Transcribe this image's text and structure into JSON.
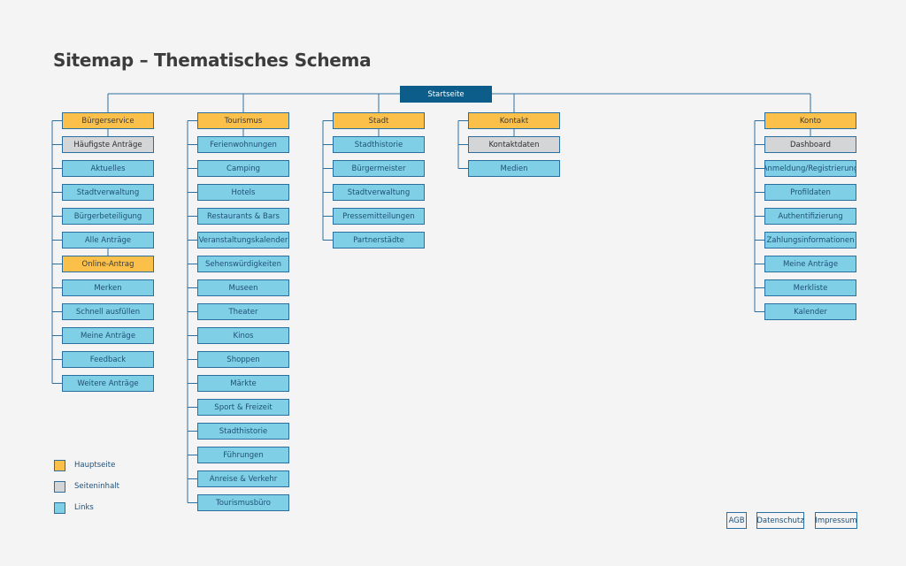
{
  "title": "Sitemap – Thematisches Schema",
  "colors": {
    "hauptseite": "#fbc04a",
    "seiteninhalt": "#d4d5d6",
    "links": "#7fd0e6",
    "startseite": "#0d5d8a",
    "line": "#2b6fa0"
  },
  "root": "Startseite",
  "columns": [
    {
      "title": "Bürgerservice",
      "items": [
        {
          "label": "Häufigste Anträge",
          "type": "content"
        },
        {
          "label": "Aktuelles",
          "type": "link"
        },
        {
          "label": "Stadtverwaltung",
          "type": "link"
        },
        {
          "label": "Bürgerbeteiligung",
          "type": "link"
        },
        {
          "label": "Alle Anträge",
          "type": "link"
        }
      ]
    },
    {
      "title": "Tourismus",
      "items": [
        {
          "label": "Ferienwohnungen",
          "type": "link"
        },
        {
          "label": "Camping",
          "type": "link"
        },
        {
          "label": "Hotels",
          "type": "link"
        },
        {
          "label": "Restaurants & Bars",
          "type": "link"
        },
        {
          "label": "Veranstaltungskalender",
          "type": "link"
        },
        {
          "label": "Sehenswürdigkeiten",
          "type": "link"
        },
        {
          "label": "Museen",
          "type": "link"
        },
        {
          "label": "Theater",
          "type": "link"
        },
        {
          "label": "Kinos",
          "type": "link"
        },
        {
          "label": "Shoppen",
          "type": "link"
        },
        {
          "label": "Märkte",
          "type": "link"
        },
        {
          "label": "Sport & Freizeit",
          "type": "link"
        },
        {
          "label": "Stadthistorie",
          "type": "link"
        },
        {
          "label": "Führungen",
          "type": "link"
        },
        {
          "label": "Anreise & Verkehr",
          "type": "link"
        },
        {
          "label": "Tourismusbüro",
          "type": "link"
        }
      ]
    },
    {
      "title": "Stadt",
      "items": [
        {
          "label": "Stadthistorie",
          "type": "link"
        },
        {
          "label": "Bürgermeister",
          "type": "link"
        },
        {
          "label": "Stadtverwaltung",
          "type": "link"
        },
        {
          "label": "Pressemitteilungen",
          "type": "link"
        },
        {
          "label": "Partnerstädte",
          "type": "link"
        }
      ]
    },
    {
      "title": "Kontakt",
      "items": [
        {
          "label": "Kontaktdaten",
          "type": "content"
        },
        {
          "label": "Medien",
          "type": "link"
        }
      ]
    },
    {
      "title": "Konto",
      "items": [
        {
          "label": "Dashboard",
          "type": "content"
        },
        {
          "label": "Anmeldung/Registrierung",
          "type": "link"
        },
        {
          "label": "Profildaten",
          "type": "link"
        },
        {
          "label": "Authentifizierung",
          "type": "link"
        },
        {
          "label": "Zahlungsinformationen",
          "type": "link"
        },
        {
          "label": "Meine Anträge",
          "type": "link"
        },
        {
          "label": "Merkliste",
          "type": "link"
        },
        {
          "label": "Kalender",
          "type": "link"
        }
      ]
    }
  ],
  "subsection": {
    "title": "Online-Antrag",
    "items": [
      {
        "label": "Merken",
        "type": "link"
      },
      {
        "label": "Schnell ausfüllen",
        "type": "link"
      },
      {
        "label": "Meine Anträge",
        "type": "link"
      },
      {
        "label": "Feedback",
        "type": "link"
      },
      {
        "label": "Weitere Anträge",
        "type": "link"
      }
    ]
  },
  "legend": [
    {
      "label": "Hauptseite",
      "type": "main"
    },
    {
      "label": "Seiteninhalt",
      "type": "content"
    },
    {
      "label": "Links",
      "type": "link"
    }
  ],
  "footer": [
    "AGB",
    "Datenschutz",
    "Impressum"
  ]
}
